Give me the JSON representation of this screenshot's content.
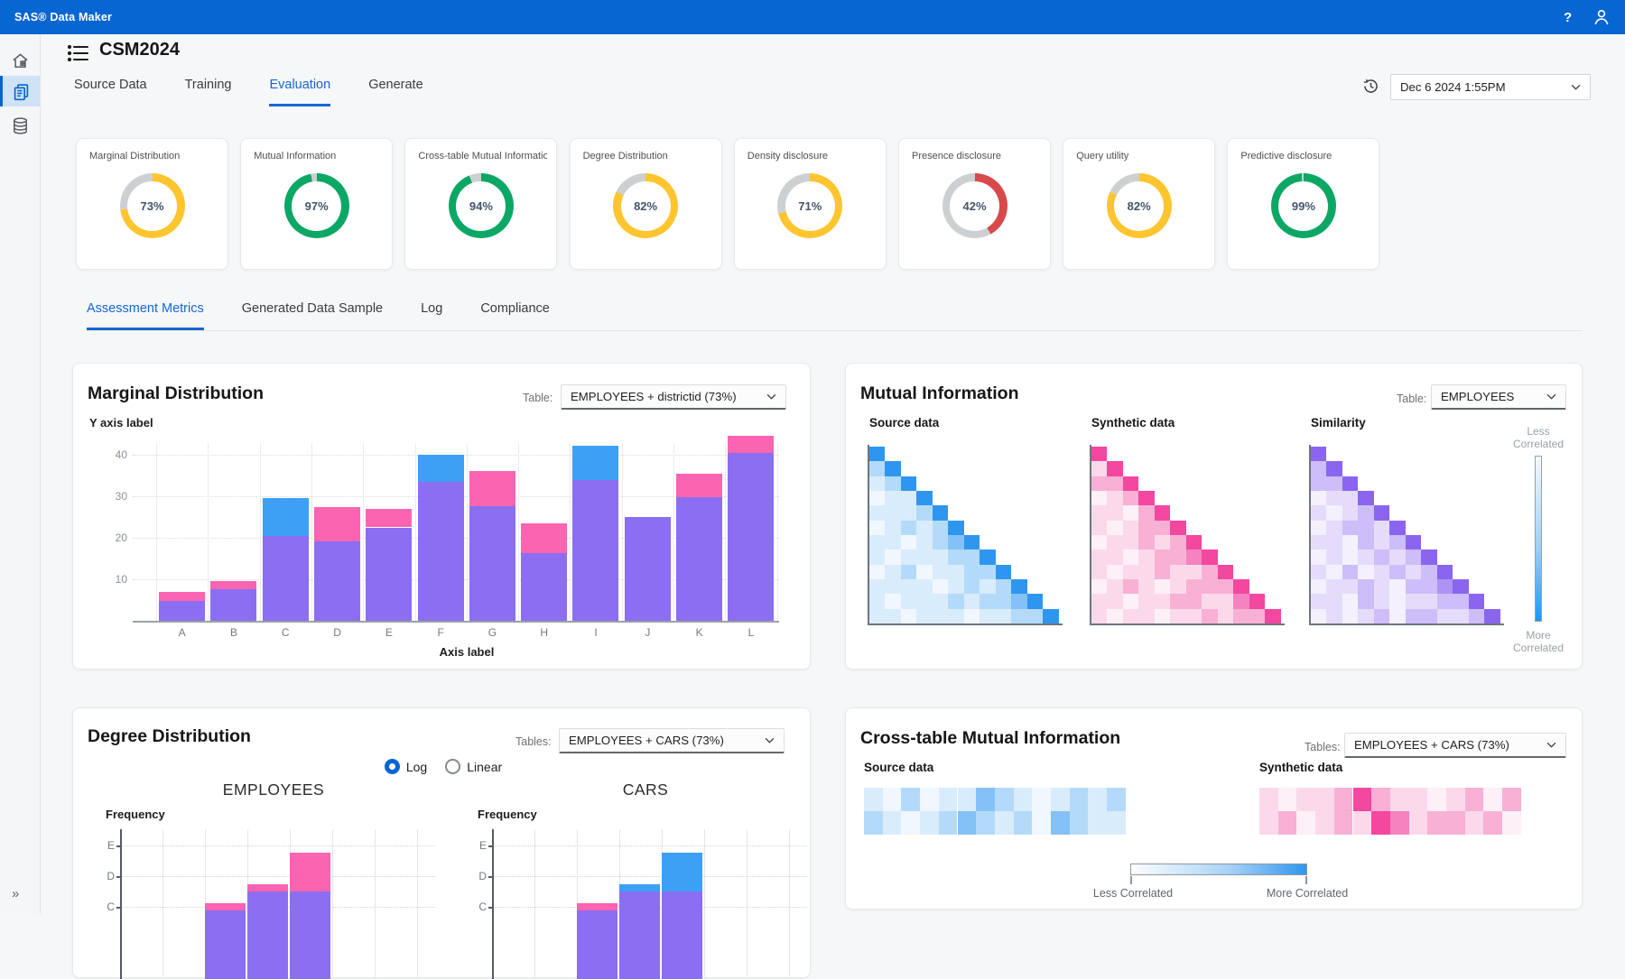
{
  "app": {
    "brand": "SAS® Data Maker",
    "help": "?"
  },
  "header": {
    "title": "CSM2024"
  },
  "primary_tabs": {
    "items": [
      "Source Data",
      "Training",
      "Evaluation",
      "Generate"
    ],
    "active_index": 2
  },
  "snapshot": {
    "value": "Dec 6 2024 1:55PM"
  },
  "donut_track": "#cdd0d3",
  "metric_cards": [
    {
      "title": "Marginal Distribution",
      "percent": "73%",
      "value": 73,
      "color": "#FFC52F"
    },
    {
      "title": "Mutual Information",
      "percent": "97%",
      "value": 97,
      "color": "#0CA765"
    },
    {
      "title": "Cross-table Mutual Information",
      "percent": "94%",
      "value": 94,
      "color": "#0CA765"
    },
    {
      "title": "Degree Distribution",
      "percent": "82%",
      "value": 82,
      "color": "#FFC52F"
    },
    {
      "title": "Density disclosure",
      "percent": "71%",
      "value": 71,
      "color": "#FFC52F"
    },
    {
      "title": "Presence disclosure",
      "percent": "42%",
      "value": 42,
      "color": "#D7494A"
    },
    {
      "title": "Query utility",
      "percent": "82%",
      "value": 82,
      "color": "#FFC52F"
    },
    {
      "title": "Predictive disclosure",
      "percent": "99%",
      "value": 99,
      "color": "#0CA765"
    }
  ],
  "secondary_tabs": {
    "items": [
      "Assessment Metrics",
      "Generated Data Sample",
      "Log",
      "Compliance"
    ],
    "active_index": 0
  },
  "palettes": {
    "blue": [
      "#f1f7fe",
      "#d9ecfc",
      "#b4daf9",
      "#84c1f6",
      "#2f96f0"
    ],
    "pink": [
      "#fdf0f7",
      "#fbd9eb",
      "#f8b0d5",
      "#f583c0",
      "#f4479f"
    ],
    "purple": [
      "#f4f0fd",
      "#e5dcfb",
      "#cdbdf8",
      "#af93f4",
      "#8a65ef"
    ]
  },
  "marginal_card": {
    "title": "Marginal Distribution",
    "table_label": "Table:",
    "table_value": "EMPLOYEES + districtid (73%)",
    "chart_data": {
      "type": "bar",
      "stacked": true,
      "y_axis_label": "Y axis label",
      "x_axis_label": "Axis label",
      "yticks": [
        10,
        20,
        30,
        40
      ],
      "ylim": [
        0,
        45
      ],
      "categories": [
        "A",
        "B",
        "C",
        "D",
        "E",
        "F",
        "G",
        "H",
        "I",
        "J",
        "K",
        "L"
      ],
      "series_colors": {
        "base": "#8B6EF1",
        "pink": "#FA64B1",
        "blue": "#3DA0F5"
      },
      "bars": [
        {
          "c": "A",
          "base": 4.8,
          "accent": "pink",
          "a": 2.2
        },
        {
          "c": "B",
          "base": 7.6,
          "accent": "pink",
          "a": 2.0
        },
        {
          "c": "C",
          "base": 20.5,
          "accent": "blue",
          "a": 9.0
        },
        {
          "c": "D",
          "base": 19.2,
          "accent": "pink",
          "a": 8.3
        },
        {
          "c": "E",
          "base": 22.5,
          "accent": "pink",
          "a": 4.4
        },
        {
          "c": "F",
          "base": 33.5,
          "accent": "blue",
          "a": 6.4
        },
        {
          "c": "G",
          "base": 27.6,
          "accent": "pink",
          "a": 8.5
        },
        {
          "c": "H",
          "base": 16.4,
          "accent": "pink",
          "a": 7.0
        },
        {
          "c": "I",
          "base": 34.0,
          "accent": "blue",
          "a": 8.1
        },
        {
          "c": "J",
          "base": 24.9,
          "accent": null,
          "a": 0
        },
        {
          "c": "K",
          "base": 29.8,
          "accent": "pink",
          "a": 5.7
        },
        {
          "c": "L",
          "base": 40.5,
          "accent": "pink",
          "a": 4.0
        }
      ]
    }
  },
  "mutual_card": {
    "title": "Mutual Information",
    "table_label": "Table:",
    "table_value": "EMPLOYEES",
    "chart_data": {
      "type": "heatmap",
      "shape": "lower-triangle",
      "maps": [
        {
          "label": "Source data",
          "palette": "blue",
          "rows": [
            "4",
            "24",
            "124",
            "0114",
            "11124",
            "012124",
            "1101234",
            "10111224",
            "012011224",
            "1111012124",
            "10111212234",
            "110111011224"
          ]
        },
        {
          "label": "Synthetic data",
          "palette": "pink",
          "rows": [
            "4",
            "14",
            "224",
            "0124",
            "11024",
            "101224",
            "0112124",
            "11012234",
            "101121124",
            "0121012224",
            "11011221134",
            "101101121224"
          ]
        },
        {
          "label": "Similarity",
          "palette": "purple",
          "rows": [
            "4",
            "24",
            "224",
            "0114",
            "10124",
            "012214",
            "1102124",
            "01012124",
            "102012124",
            "0112102234",
            "11021011224",
            "010120221124"
          ]
        }
      ],
      "legend": {
        "top": [
          "Less",
          "Correlated"
        ],
        "bottom": [
          "More",
          "Correlated"
        ]
      }
    }
  },
  "degree_card": {
    "title": "Degree Distribution",
    "tables_label": "Tables:",
    "table_value": "EMPLOYEES + CARS (73%)",
    "scale": {
      "options": [
        "Log",
        "Linear"
      ],
      "active_index": 0
    },
    "chart_data": {
      "type": "bar",
      "scale": "log",
      "freq_label": "Frequency",
      "yticks": [
        "E",
        "D",
        "C"
      ],
      "charts": [
        {
          "name": "EMPLOYEES",
          "bars": [
            {
              "top": 1.12,
              "split": 0.88,
              "accent": "pink"
            },
            {
              "top": 1.74,
              "split": 1.5,
              "accent": "pink"
            },
            {
              "top": 2.76,
              "split": 1.5,
              "accent": "pink"
            }
          ]
        },
        {
          "name": "CARS",
          "bars": [
            {
              "top": 1.12,
              "split": 0.88,
              "accent": "pink"
            },
            {
              "top": 1.74,
              "split": 1.5,
              "accent": "blue"
            },
            {
              "top": 2.76,
              "split": 1.5,
              "accent": "blue"
            }
          ]
        }
      ],
      "series_colors": {
        "base": "#8B6EF1",
        "pink": "#FA64B1",
        "blue": "#3DA0F5"
      }
    }
  },
  "crosstable_card": {
    "title": "Cross-table Mutual Information",
    "tables_label": "Tables:",
    "table_value": "EMPLOYEES + CARS (73%)",
    "chart_data": {
      "type": "heatmap",
      "strips": [
        {
          "label": "Source data",
          "palette": "blue",
          "rows": [
            "10201132101212",
            "21012321203211"
          ]
        },
        {
          "label": "Synthetic data",
          "palette": "pink",
          "rows": [
            "10112421101202",
            "12012143122120"
          ]
        }
      ],
      "legend": {
        "left": "Less Correlated",
        "right": "More Correlated"
      }
    }
  }
}
